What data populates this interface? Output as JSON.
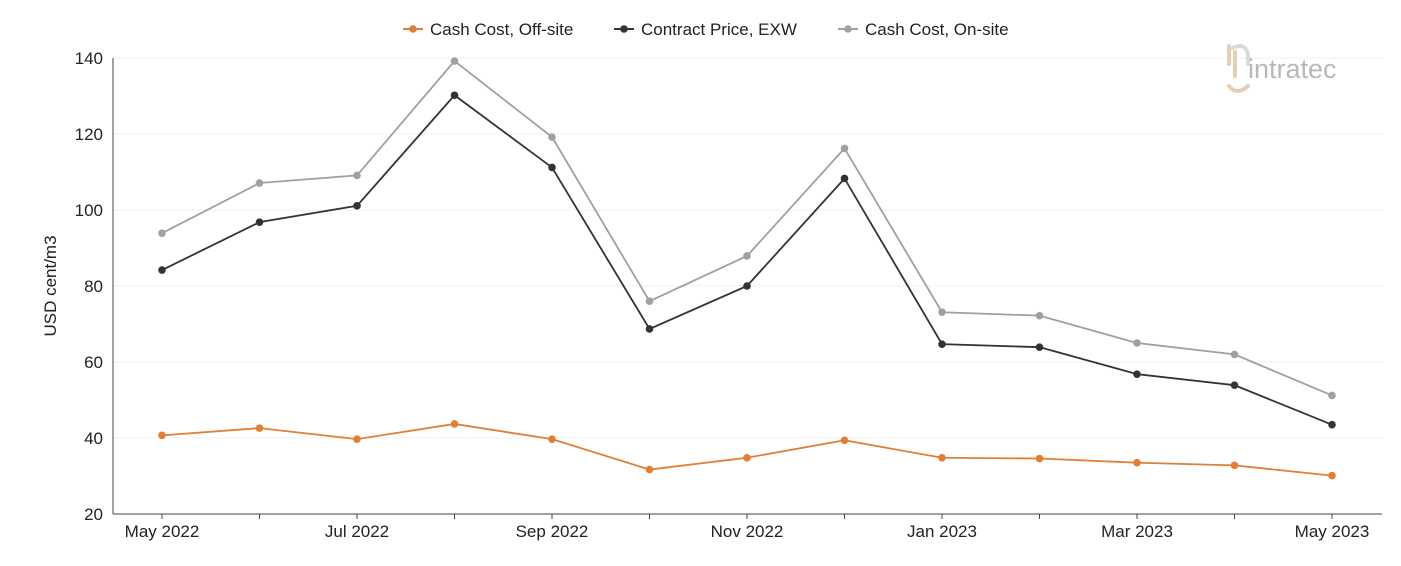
{
  "logo": {
    "text": "intratec"
  },
  "chart_data": {
    "type": "line",
    "title": "",
    "xlabel": "",
    "ylabel": "USD cent/m3",
    "ylim": [
      20,
      140
    ],
    "yticks": [
      20,
      40,
      60,
      80,
      100,
      120,
      140
    ],
    "legend_position": "top-center",
    "grid": true,
    "x": [
      "May 2022",
      "Jun 2022",
      "Jul 2022",
      "Aug 2022",
      "Sep 2022",
      "Oct 2022",
      "Nov 2022",
      "Dec 2022",
      "Jan 2023",
      "Feb 2023",
      "Mar 2023",
      "Apr 2023",
      "May 2023"
    ],
    "x_tick_labels": [
      "May 2022",
      "",
      "Jul 2022",
      "",
      "Sep 2022",
      "",
      "Nov 2022",
      "",
      "Jan 2023",
      "",
      "Mar 2023",
      "",
      "May 2023"
    ],
    "series": [
      {
        "name": "Cash Cost, Off-site",
        "color": "#e07f35",
        "values": [
          40.7,
          42.6,
          39.7,
          43.7,
          39.7,
          31.7,
          34.8,
          39.4,
          34.8,
          34.6,
          33.5,
          32.8,
          30.1
        ]
      },
      {
        "name": "Contract Price, EXW",
        "color": "#333333",
        "values": [
          84.2,
          96.8,
          101.1,
          130.2,
          111.2,
          68.7,
          80.0,
          108.3,
          64.7,
          63.9,
          56.8,
          53.9,
          43.5
        ]
      },
      {
        "name": "Cash Cost, On-site",
        "color": "#a0a0a0",
        "values": [
          93.9,
          107.1,
          109.1,
          139.2,
          119.2,
          76.0,
          87.9,
          116.2,
          73.1,
          72.2,
          65.0,
          62.0,
          51.2
        ]
      }
    ]
  }
}
